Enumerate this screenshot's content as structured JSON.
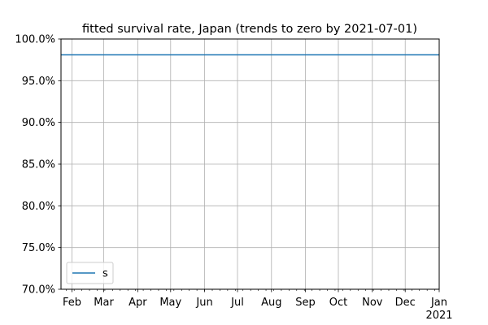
{
  "chart_data": {
    "type": "line",
    "title": "fitted survival rate, Japan (trends to zero by 2021-07-01)",
    "xlabel": "",
    "ylabel": "",
    "ylim": [
      0.7,
      1.0
    ],
    "yticks": [
      {
        "value": 0.7,
        "label": "70.0%"
      },
      {
        "value": 0.75,
        "label": "75.0%"
      },
      {
        "value": 0.8,
        "label": "80.0%"
      },
      {
        "value": 0.85,
        "label": "85.0%"
      },
      {
        "value": 0.9,
        "label": "90.0%"
      },
      {
        "value": 0.95,
        "label": "95.0%"
      },
      {
        "value": 1.0,
        "label": "100.0%"
      }
    ],
    "xlim": [
      "2020-01-22",
      "2021-01-01"
    ],
    "xticks": [
      {
        "value": "2020-02-01",
        "label": "Feb"
      },
      {
        "value": "2020-03-01",
        "label": "Mar"
      },
      {
        "value": "2020-04-01",
        "label": "Apr"
      },
      {
        "value": "2020-05-01",
        "label": "May"
      },
      {
        "value": "2020-06-01",
        "label": "Jun"
      },
      {
        "value": "2020-07-01",
        "label": "Jul"
      },
      {
        "value": "2020-08-01",
        "label": "Aug"
      },
      {
        "value": "2020-09-01",
        "label": "Sep"
      },
      {
        "value": "2020-10-01",
        "label": "Oct"
      },
      {
        "value": "2020-11-01",
        "label": "Nov"
      },
      {
        "value": "2020-12-01",
        "label": "Dec"
      },
      {
        "value": "2021-01-01",
        "label": "Jan",
        "sublabel": "2021"
      }
    ],
    "grid": true,
    "legend_position": "lower-left",
    "series": [
      {
        "name": "s",
        "color": "#1f77b4",
        "x": [
          "2020-01-22",
          "2021-01-01"
        ],
        "y": [
          0.981,
          0.981
        ]
      }
    ]
  }
}
